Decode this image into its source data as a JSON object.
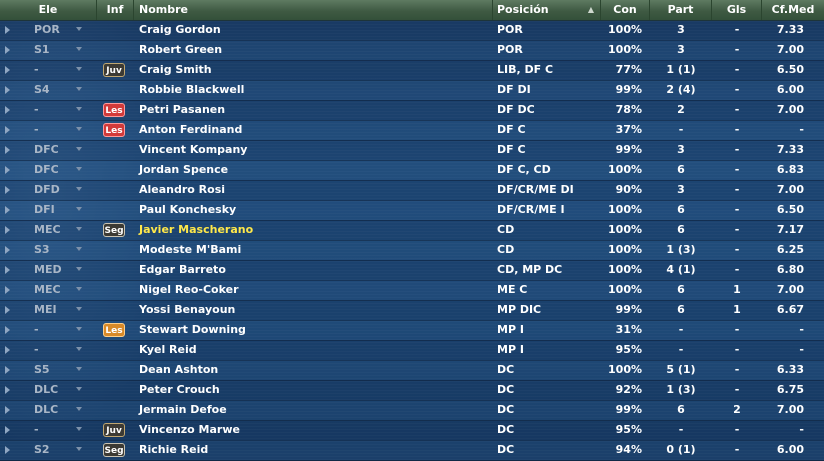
{
  "header": {
    "ele": "Ele",
    "inf": "Inf",
    "nombre": "Nombre",
    "posicion": "Posición",
    "sort_indicator": "▲",
    "con": "Con",
    "part": "Part",
    "gls": "Gls",
    "cfmed": "Cf.Med"
  },
  "rows": [
    {
      "ele": "POR",
      "inf": "",
      "name": "Craig Gordon",
      "pos": "POR",
      "con": "100%",
      "part": "3",
      "gls": "-",
      "cf": "7.33"
    },
    {
      "ele": "S1",
      "inf": "",
      "name": "Robert Green",
      "pos": "POR",
      "con": "100%",
      "part": "3",
      "gls": "-",
      "cf": "7.00"
    },
    {
      "ele": "-",
      "inf": "Juv",
      "name": "Craig Smith",
      "pos": "LIB, DF C",
      "con": "77%",
      "part": "1 (1)",
      "gls": "-",
      "cf": "6.50"
    },
    {
      "ele": "S4",
      "inf": "",
      "name": "Robbie Blackwell",
      "pos": "DF DI",
      "con": "99%",
      "part": "2 (4)",
      "gls": "-",
      "cf": "6.00"
    },
    {
      "ele": "-",
      "inf": "Les",
      "name": "Petri Pasanen",
      "pos": "DF DC",
      "con": "78%",
      "part": "2",
      "gls": "-",
      "cf": "7.00"
    },
    {
      "ele": "-",
      "inf": "Les",
      "name": "Anton Ferdinand",
      "pos": "DF C",
      "con": "37%",
      "part": "-",
      "gls": "-",
      "cf": "-"
    },
    {
      "ele": "DFC",
      "inf": "",
      "name": "Vincent Kompany",
      "pos": "DF C",
      "con": "99%",
      "part": "3",
      "gls": "-",
      "cf": "7.33"
    },
    {
      "ele": "DFC",
      "inf": "",
      "name": "Jordan Spence",
      "pos": "DF C, CD",
      "con": "100%",
      "part": "6",
      "gls": "-",
      "cf": "6.83"
    },
    {
      "ele": "DFD",
      "inf": "",
      "name": "Aleandro Rosi",
      "pos": "DF/CR/ME DI",
      "con": "90%",
      "part": "3",
      "gls": "-",
      "cf": "7.00"
    },
    {
      "ele": "DFI",
      "inf": "",
      "name": "Paul Konchesky",
      "pos": "DF/CR/ME I",
      "con": "100%",
      "part": "6",
      "gls": "-",
      "cf": "6.50"
    },
    {
      "ele": "MEC",
      "inf": "Seg",
      "name": "Javier Mascherano",
      "pos": "CD",
      "con": "100%",
      "part": "6",
      "gls": "-",
      "cf": "7.17",
      "highlight": true
    },
    {
      "ele": "S3",
      "inf": "",
      "name": "Modeste M'Bami",
      "pos": "CD",
      "con": "100%",
      "part": "1 (3)",
      "gls": "-",
      "cf": "6.25"
    },
    {
      "ele": "MED",
      "inf": "",
      "name": "Edgar Barreto",
      "pos": "CD, MP DC",
      "con": "100%",
      "part": "4 (1)",
      "gls": "-",
      "cf": "6.80"
    },
    {
      "ele": "MEC",
      "inf": "",
      "name": "Nigel Reo-Coker",
      "pos": "ME C",
      "con": "100%",
      "part": "6",
      "gls": "1",
      "cf": "7.00"
    },
    {
      "ele": "MEI",
      "inf": "",
      "name": "Yossi Benayoun",
      "pos": "MP DIC",
      "con": "99%",
      "part": "6",
      "gls": "1",
      "cf": "6.67"
    },
    {
      "ele": "-",
      "inf": "Les",
      "name": "Stewart Downing",
      "pos": "MP I",
      "con": "31%",
      "part": "-",
      "gls": "-",
      "cf": "-",
      "badge_style": "orange"
    },
    {
      "ele": "-",
      "inf": "",
      "name": "Kyel Reid",
      "pos": "MP I",
      "con": "95%",
      "part": "-",
      "gls": "-",
      "cf": "-"
    },
    {
      "ele": "S5",
      "inf": "",
      "name": "Dean Ashton",
      "pos": "DC",
      "con": "100%",
      "part": "5 (1)",
      "gls": "-",
      "cf": "6.33"
    },
    {
      "ele": "DLC",
      "inf": "",
      "name": "Peter Crouch",
      "pos": "DC",
      "con": "92%",
      "part": "1 (3)",
      "gls": "-",
      "cf": "6.75"
    },
    {
      "ele": "DLC",
      "inf": "",
      "name": "Jermain Defoe",
      "pos": "DC",
      "con": "99%",
      "part": "6",
      "gls": "2",
      "cf": "7.00"
    },
    {
      "ele": "-",
      "inf": "Juv",
      "name": "Vincenzo Marwe",
      "pos": "DC",
      "con": "95%",
      "part": "-",
      "gls": "-",
      "cf": "-"
    },
    {
      "ele": "S2",
      "inf": "Seg",
      "name": "Richie Reid",
      "pos": "DC",
      "con": "94%",
      "part": "0 (1)",
      "gls": "-",
      "cf": "6.00"
    }
  ],
  "colors": {
    "header_bg": "#3f5a43",
    "badge_les": "#d23a3a",
    "badge_les_orange": "#d98a28",
    "badge_dark": "#3c3a34",
    "highlight_name": "#ffe84a"
  }
}
